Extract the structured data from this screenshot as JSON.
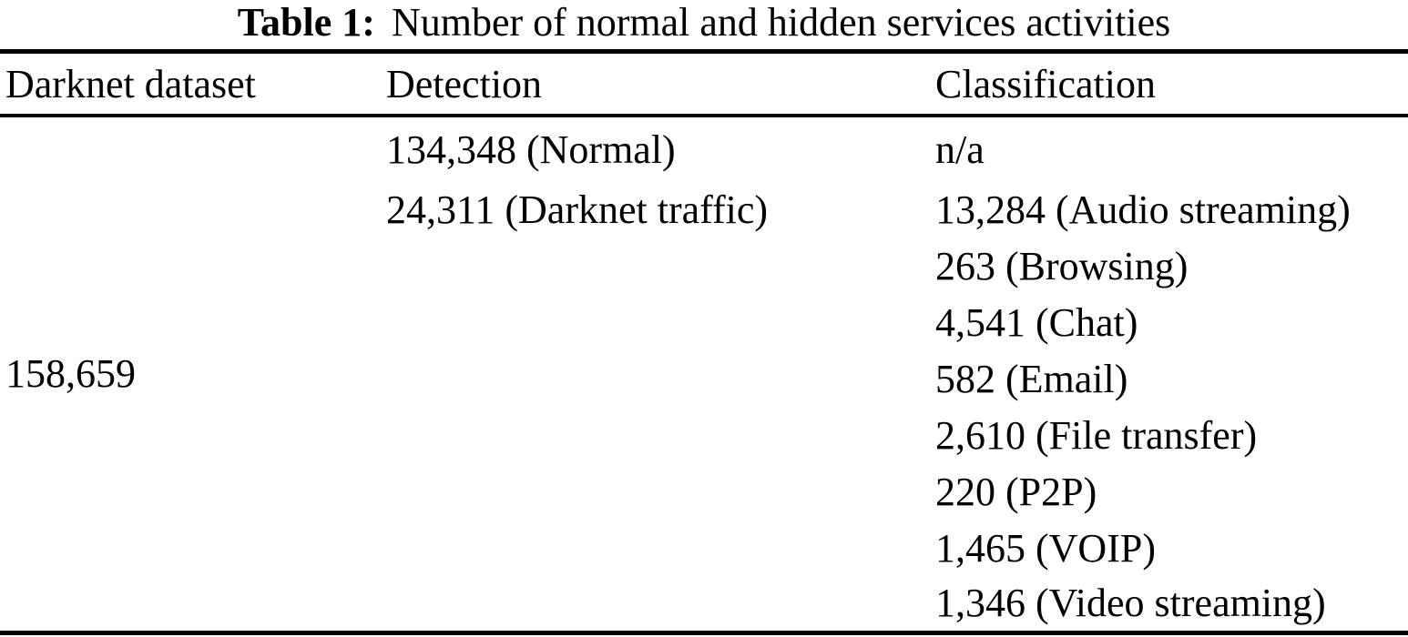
{
  "table": {
    "caption": {
      "label": "Table 1:",
      "text": "Number of normal and hidden services activities"
    },
    "columns": [
      "Darknet dataset",
      "Detection",
      "Classification"
    ],
    "dataset_total": "158,659",
    "detection": [
      "134,348 (Normal)",
      "24,311 (Darknet traffic)"
    ],
    "classification": [
      "n/a",
      "13,284 (Audio streaming)",
      "263 (Browsing)",
      "4,541 (Chat)",
      "582 (Email)",
      "2,610 (File transfer)",
      "220 (P2P)",
      "1,465 (VOIP)",
      "1,346 (Video streaming)"
    ]
  },
  "chart_data": {
    "type": "table",
    "title": "Table 1: Number of normal and hidden services activities",
    "columns": [
      "Darknet dataset",
      "Detection",
      "Classification"
    ],
    "detection_counts": {
      "Normal": 134348,
      "Darknet traffic": 24311
    },
    "classification_counts": {
      "Audio streaming": 13284,
      "Browsing": 263,
      "Chat": 4541,
      "Email": 582,
      "File transfer": 2610,
      "P2P": 220,
      "VOIP": 1465,
      "Video streaming": 1346
    },
    "dataset_total": 158659
  }
}
